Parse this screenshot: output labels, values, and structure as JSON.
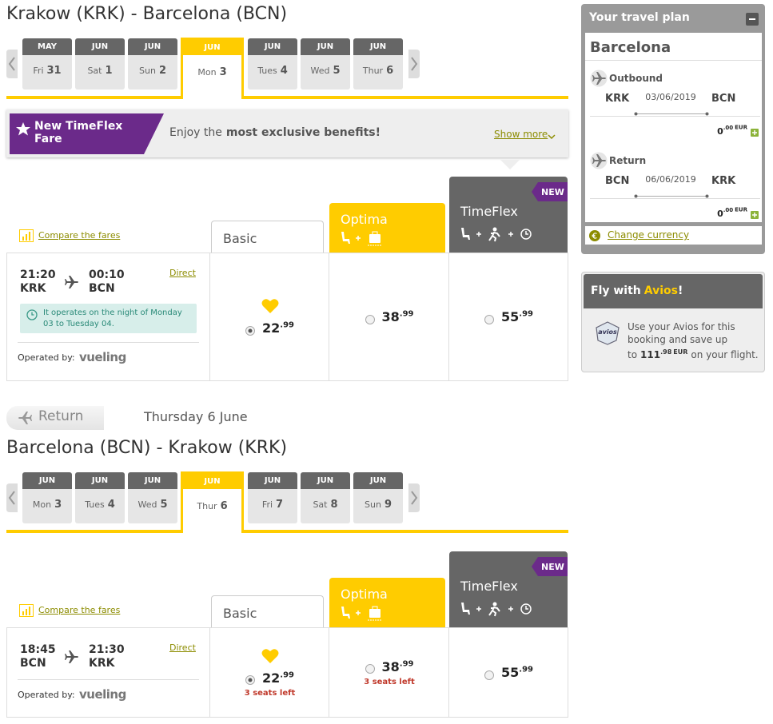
{
  "outbound": {
    "route": "Krakow (KRK) - Barcelona (BCN)",
    "selected": 3,
    "dates": [
      {
        "month": "MAY",
        "day": "Fri",
        "num": "31"
      },
      {
        "month": "JUN",
        "day": "Sat",
        "num": "1"
      },
      {
        "month": "JUN",
        "day": "Sun",
        "num": "2"
      },
      {
        "month": "JUN",
        "day": "Mon",
        "num": "3"
      },
      {
        "month": "JUN",
        "day": "Tues",
        "num": "4"
      },
      {
        "month": "JUN",
        "day": "Wed",
        "num": "5"
      },
      {
        "month": "JUN",
        "day": "Thur",
        "num": "6"
      }
    ],
    "promo": {
      "title": "New TimeFlex Fare",
      "text": "Enjoy the",
      "bold": "most exclusive benefits!",
      "link": "Show more"
    },
    "compare": "Compare the fares",
    "fares": [
      {
        "name": "Basic"
      },
      {
        "name": "Optima"
      },
      {
        "name": "TimeFlex",
        "badge": "NEW"
      }
    ],
    "flight": {
      "dep_time": "21:20",
      "dep": "KRK",
      "arr_time": "00:10",
      "arr": "BCN",
      "type": "Direct",
      "note": "It operates on the night of Monday 03 to Tuesday 04.",
      "operated": "Operated by:",
      "carrier": "vueling"
    },
    "selected_fare": 0,
    "prices": [
      {
        "amount": "22",
        "cents": ".99"
      },
      {
        "amount": "38",
        "cents": ".99"
      },
      {
        "amount": "55",
        "cents": ".99"
      }
    ]
  },
  "return_bar": {
    "label": "Return",
    "date": "Thursday 6 June"
  },
  "return": {
    "route": "Barcelona (BCN) - Krakow (KRK)",
    "selected": 3,
    "dates": [
      {
        "month": "JUN",
        "day": "Mon",
        "num": "3"
      },
      {
        "month": "JUN",
        "day": "Tues",
        "num": "4"
      },
      {
        "month": "JUN",
        "day": "Wed",
        "num": "5"
      },
      {
        "month": "JUN",
        "day": "Thur",
        "num": "6"
      },
      {
        "month": "JUN",
        "day": "Fri",
        "num": "7"
      },
      {
        "month": "JUN",
        "day": "Sat",
        "num": "8"
      },
      {
        "month": "JUN",
        "day": "Sun",
        "num": "9"
      }
    ],
    "compare": "Compare the fares",
    "fares": [
      {
        "name": "Basic"
      },
      {
        "name": "Optima"
      },
      {
        "name": "TimeFlex",
        "badge": "NEW"
      }
    ],
    "flight": {
      "dep_time": "18:45",
      "dep": "BCN",
      "arr_time": "21:30",
      "arr": "KRK",
      "type": "Direct",
      "operated": "Operated by:",
      "carrier": "vueling"
    },
    "selected_fare": 0,
    "prices": [
      {
        "amount": "22",
        "cents": ".99",
        "seats": "3 seats left"
      },
      {
        "amount": "38",
        "cents": ".99",
        "seats": "3 seats left"
      },
      {
        "amount": "55",
        "cents": ".99"
      }
    ]
  },
  "sidebar": {
    "title": "Your travel plan",
    "city": "Barcelona",
    "legs": [
      {
        "label": "Outbound",
        "from": "KRK",
        "date": "03/06/2019",
        "to": "BCN",
        "price": "0",
        "cents": ".00",
        "currency": "EUR"
      },
      {
        "label": "Return",
        "from": "BCN",
        "date": "06/06/2019",
        "to": "KRK",
        "price": "0",
        "cents": ".00",
        "currency": "EUR"
      }
    ],
    "currency_link": "Change currency"
  },
  "avios": {
    "title": "Fly with",
    "brand": "Avios",
    "excl": "!",
    "logo": "avios",
    "text": "Use your Avios for this booking and save up to",
    "amount": "111",
    "cents": ".98",
    "currency": "EUR",
    "text_end": "on your flight."
  }
}
